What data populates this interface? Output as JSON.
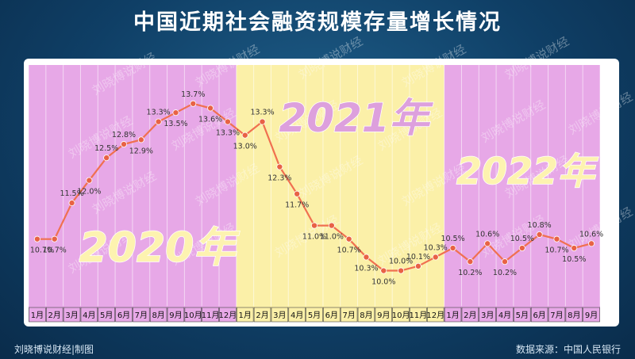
{
  "title": "中国近期社会融资规模存量增长情况",
  "footer": {
    "credit": "刘晓博说财经|制图",
    "source": "数据来源：中国人民银行"
  },
  "watermark": "刘晓博说财经",
  "colors": {
    "year2020_bg": "#e7a8e7",
    "year2021_bg": "#fbf0a8",
    "year2022_bg": "#e7a8e7",
    "line": "#f07050",
    "point": "#e86245",
    "year_label_fill": "#fdf3b0",
    "year_label_2021_fill": "#dda0dd"
  },
  "chart_data": {
    "type": "line",
    "year_labels": [
      "2020年",
      "2021年",
      "2022年"
    ],
    "x": [
      "1月",
      "2月",
      "3月",
      "4月",
      "5月",
      "6月",
      "7月",
      "8月",
      "9月",
      "10月",
      "11月",
      "12月",
      "1月",
      "2月",
      "3月",
      "4月",
      "5月",
      "6月",
      "7月",
      "8月",
      "9月",
      "10月",
      "11月",
      "12月",
      "1月",
      "2月",
      "3月",
      "4月",
      "5月",
      "6月",
      "7月",
      "8月",
      "9月"
    ],
    "values": [
      10.7,
      10.7,
      11.5,
      12.0,
      12.5,
      12.8,
      12.9,
      13.3,
      13.5,
      13.7,
      13.6,
      13.3,
      13.0,
      13.3,
      12.3,
      11.7,
      11.0,
      11.0,
      10.7,
      10.3,
      10.0,
      10.0,
      10.1,
      10.3,
      10.5,
      10.2,
      10.6,
      10.2,
      10.5,
      10.8,
      10.7,
      10.5,
      10.6
    ],
    "data_labels": [
      "10.7%",
      "10.7%",
      "11.5%",
      "12.0%",
      "12.5%",
      "12.8%",
      "12.9%",
      "13.3%",
      "13.5%",
      "13.7%",
      "13.6%",
      "13.3%",
      "13.0%",
      "13.3%",
      "12.3%",
      "11.7%",
      "11.0%",
      "11.0%",
      "10.7%",
      "10.3%",
      "10.0%",
      "10.0%",
      "10.1%",
      "10.3%",
      "10.5%",
      "10.2%",
      "10.6%",
      "10.2%",
      "10.5%",
      "10.8%",
      "10.7%",
      "10.5%",
      "10.6%"
    ],
    "year_groups": [
      {
        "year": "2020年",
        "start": 0,
        "end": 11
      },
      {
        "year": "2021年",
        "start": 12,
        "end": 23
      },
      {
        "year": "2022年",
        "start": 24,
        "end": 32
      }
    ],
    "ylim": [
      9.5,
      14.1
    ],
    "grid": "vertical"
  }
}
